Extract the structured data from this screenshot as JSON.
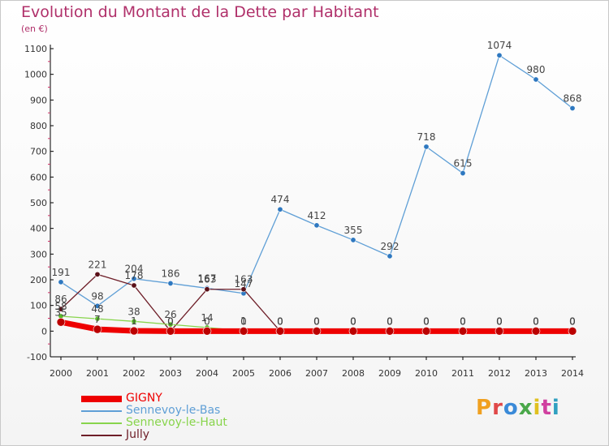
{
  "title": "Evolution du Montant de la Dette par Habitant",
  "unit": "(en €)",
  "brand": {
    "text": "Proxiti",
    "colors": [
      "#f0a020",
      "#e04848",
      "#3a8ad8",
      "#4aa84a",
      "#e0c020",
      "#d040a0",
      "#30a0c0"
    ]
  },
  "chart_data": {
    "type": "line",
    "x": [
      "2000",
      "2001",
      "2002",
      "2003",
      "2004",
      "2005",
      "2006",
      "2007",
      "2008",
      "2009",
      "2010",
      "2011",
      "2012",
      "2013",
      "2014"
    ],
    "ylim": [
      -100,
      1100
    ],
    "yticks": [
      "-100",
      "0",
      "100",
      "200",
      "300",
      "400",
      "500",
      "600",
      "700",
      "800",
      "900",
      "1000",
      "1100"
    ],
    "grid": false,
    "legend": "bottom-left",
    "series": [
      {
        "name": "GIGNY",
        "color": "#ee0000",
        "marker": "#bb0000",
        "width": 7,
        "values": [
          35,
          7,
          1,
          0,
          0,
          0,
          0,
          0,
          0,
          0,
          0,
          0,
          0,
          0,
          0
        ],
        "labels": [
          "35",
          "7",
          "1",
          "0",
          "0",
          "0",
          "0",
          "0",
          "0",
          "0",
          "0",
          "0",
          "0",
          "0",
          "0"
        ]
      },
      {
        "name": "Sennevoy-le-Bas",
        "color": "#5f9fd6",
        "marker": "#2e78c0",
        "width": 1.3,
        "values": [
          191,
          98,
          204,
          186,
          167,
          147,
          474,
          412,
          355,
          292,
          718,
          615,
          1074,
          980,
          868
        ],
        "labels": [
          "191",
          "98",
          "204",
          "186",
          "167",
          "147",
          "474",
          "412",
          "355",
          "292",
          "718",
          "615",
          "1074",
          "980",
          "868"
        ]
      },
      {
        "name": "Sennevoy-le-Haut",
        "color": "#88d44c",
        "marker": "#5ab82a",
        "width": 1.3,
        "values": [
          58,
          48,
          38,
          26,
          14,
          1,
          0,
          0,
          0,
          0,
          0,
          0,
          0,
          0,
          0
        ],
        "labels": [
          "58",
          "48",
          "38",
          "26",
          "14",
          "1",
          "0",
          "0",
          "0",
          "0",
          "0",
          "0",
          "0",
          "0",
          "0"
        ]
      },
      {
        "name": "Jully",
        "color": "#6e1e28",
        "marker": "#5a1018",
        "width": 1.3,
        "values": [
          86,
          221,
          178,
          0,
          163,
          163,
          0,
          0,
          0,
          0,
          0,
          0,
          0,
          0,
          0
        ],
        "labels": [
          "86",
          "221",
          "178",
          "0",
          "163",
          "163",
          "0",
          "0",
          "0",
          "0",
          "0",
          "0",
          "0",
          "0",
          "0"
        ]
      }
    ]
  }
}
